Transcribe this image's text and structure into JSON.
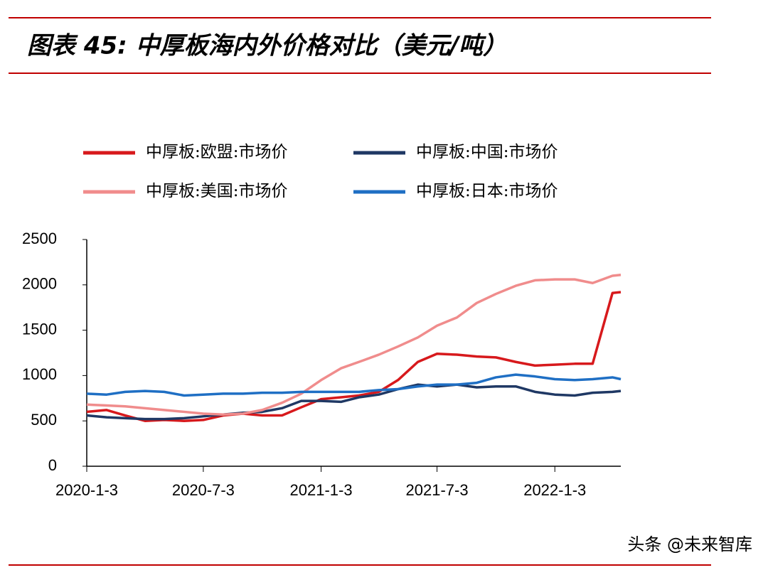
{
  "chart_data": {
    "type": "line",
    "title": "图表 45: 中厚板海内外价格对比（美元/吨）",
    "watermark": "头条 @未来智库",
    "x": [
      "2020-1-3",
      "2020-2-3",
      "2020-3-3",
      "2020-4-3",
      "2020-5-3",
      "2020-6-3",
      "2020-7-3",
      "2020-8-3",
      "2020-9-3",
      "2020-10-3",
      "2020-11-3",
      "2020-12-3",
      "2021-1-3",
      "2021-2-3",
      "2021-3-3",
      "2021-4-3",
      "2021-5-3",
      "2021-6-3",
      "2021-7-3",
      "2021-8-3",
      "2021-9-3",
      "2021-10-3",
      "2021-11-3",
      "2021-12-3",
      "2022-1-3",
      "2022-2-3",
      "2022-3-3",
      "2022-4-3",
      "2022-4-16"
    ],
    "xlim": [
      "2020-1-3",
      "2022-4-16"
    ],
    "xticks": [
      "2020-1-3",
      "2020-7-3",
      "2021-1-3",
      "2021-7-3",
      "2022-1-3"
    ],
    "ylim": [
      0,
      2500
    ],
    "yticks": [
      0,
      500,
      1000,
      1500,
      2000,
      2500
    ],
    "series": [
      {
        "name": "中厚板:欧盟:市场价",
        "color": "#d7191c",
        "values": [
          600,
          620,
          560,
          500,
          510,
          500,
          510,
          560,
          580,
          560,
          560,
          650,
          740,
          760,
          780,
          820,
          950,
          1150,
          1240,
          1230,
          1210,
          1200,
          1150,
          1110,
          1120,
          1130,
          1130,
          1910,
          1920
        ]
      },
      {
        "name": "中厚板:中国:市场价",
        "color": "#1f3864",
        "values": [
          560,
          540,
          530,
          520,
          520,
          530,
          550,
          570,
          590,
          600,
          640,
          720,
          720,
          710,
          760,
          790,
          850,
          900,
          880,
          900,
          870,
          880,
          880,
          820,
          790,
          780,
          810,
          820,
          830
        ]
      },
      {
        "name": "中厚板:美国:市场价",
        "color": "#f08c8c",
        "values": [
          680,
          670,
          660,
          640,
          620,
          600,
          580,
          570,
          580,
          620,
          700,
          800,
          950,
          1080,
          1150,
          1230,
          1320,
          1420,
          1550,
          1640,
          1800,
          1900,
          1990,
          2050,
          2060,
          2060,
          2020,
          2100,
          2110
        ]
      },
      {
        "name": "中厚板:日本:市场价",
        "color": "#1f6fc4",
        "values": [
          800,
          790,
          820,
          830,
          820,
          780,
          790,
          800,
          800,
          810,
          810,
          820,
          820,
          820,
          820,
          840,
          850,
          880,
          900,
          900,
          920,
          980,
          1010,
          990,
          960,
          950,
          960,
          980,
          960
        ]
      }
    ]
  }
}
